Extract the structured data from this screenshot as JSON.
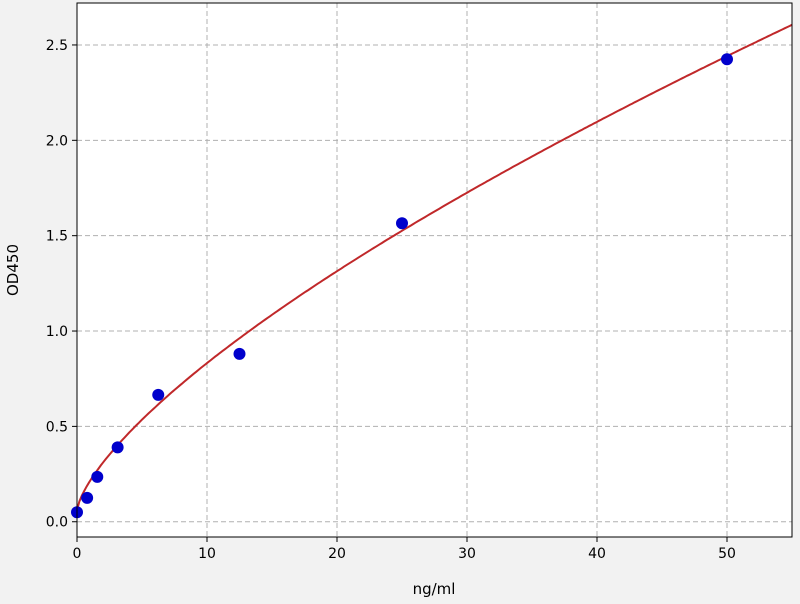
{
  "chart_data": {
    "type": "scatter",
    "title": "",
    "xlabel": "ng/ml",
    "ylabel": "OD450",
    "xlim": [
      0,
      55
    ],
    "ylim": [
      -0.08,
      2.72
    ],
    "grid": true,
    "xticks": [
      0,
      10,
      20,
      30,
      40,
      50
    ],
    "xtick_labels": [
      "0",
      "10",
      "20",
      "30",
      "40",
      "50"
    ],
    "yticks": [
      0.0,
      0.5,
      1.0,
      1.5,
      2.0,
      2.5
    ],
    "ytick_labels": [
      "0.0",
      "0.5",
      "1.0",
      "1.5",
      "2.0",
      "2.5"
    ],
    "points": {
      "x": [
        0,
        0.78,
        1.56,
        3.125,
        6.25,
        12.5,
        25,
        50
      ],
      "y": [
        0.05,
        0.125,
        0.235,
        0.39,
        0.665,
        0.88,
        1.565,
        2.425
      ],
      "color": "#0000cc"
    },
    "fit_curve": {
      "model": "y = a + b*x^c",
      "a": 0.06,
      "b": 0.154,
      "c": 0.7,
      "color": "#c0282a"
    }
  }
}
